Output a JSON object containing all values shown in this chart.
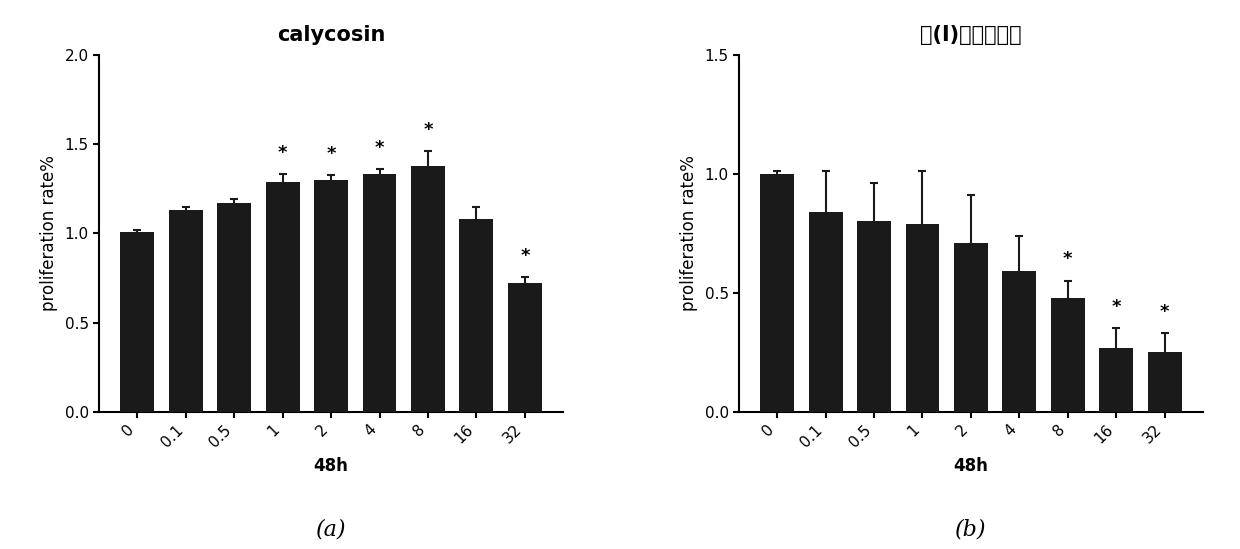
{
  "chart_a": {
    "title": "calycosin",
    "xlabel": "48h",
    "ylabel": "proliferation rate%",
    "categories": [
      "0",
      "0.1",
      "0.5",
      "1",
      "2",
      "4",
      "8",
      "16",
      "32"
    ],
    "values": [
      1.01,
      1.13,
      1.17,
      1.29,
      1.3,
      1.33,
      1.38,
      1.08,
      0.72
    ],
    "errors": [
      0.01,
      0.02,
      0.025,
      0.04,
      0.025,
      0.03,
      0.08,
      0.07,
      0.035
    ],
    "sig": [
      false,
      false,
      false,
      true,
      true,
      true,
      true,
      false,
      true
    ],
    "ylim": [
      0.0,
      2.0
    ],
    "yticks": [
      0.0,
      0.5,
      1.0,
      1.5,
      2.0
    ],
    "label": "(a)"
  },
  "chart_b": {
    "title": "式(I)所示化合物",
    "xlabel": "48h",
    "ylabel": "proliferation rate%",
    "categories": [
      "0",
      "0.1",
      "0.5",
      "1",
      "2",
      "4",
      "8",
      "16",
      "32"
    ],
    "values": [
      1.0,
      0.84,
      0.8,
      0.79,
      0.71,
      0.59,
      0.48,
      0.27,
      0.25
    ],
    "errors": [
      0.01,
      0.17,
      0.16,
      0.22,
      0.2,
      0.15,
      0.07,
      0.08,
      0.08
    ],
    "sig": [
      false,
      false,
      false,
      false,
      false,
      false,
      true,
      true,
      true
    ],
    "ylim": [
      0.0,
      1.5
    ],
    "yticks": [
      0.0,
      0.5,
      1.0,
      1.5
    ],
    "label": "(b)"
  },
  "bar_color": "#1a1a1a",
  "bar_width": 0.7,
  "errorbar_color": "#1a1a1a",
  "errorbar_lw": 1.5,
  "errorbar_capsize": 3,
  "sig_marker": "*",
  "background_color": "#ffffff",
  "title_fontsize": 15,
  "axis_fontsize": 12,
  "tick_fontsize": 11,
  "label_fontsize": 16,
  "tick_rotation": 45
}
